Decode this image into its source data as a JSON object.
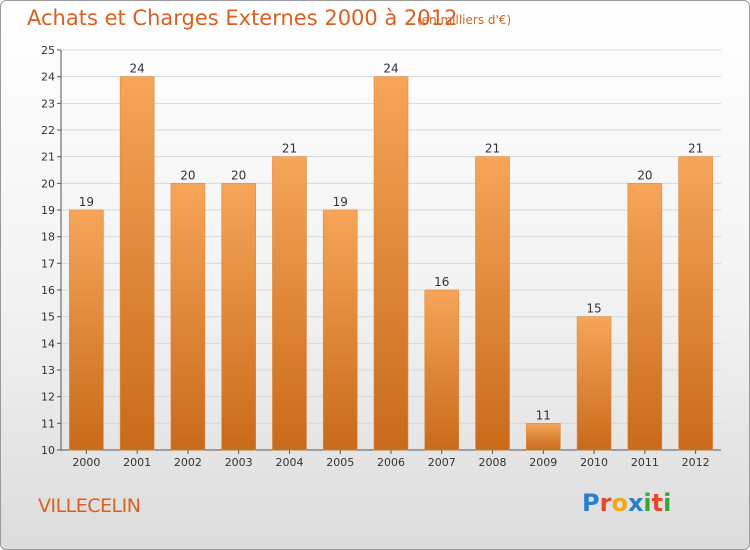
{
  "header": {
    "title": "Achats et Charges Externes 2000 à 2012",
    "unit": "(en milliers d'€)"
  },
  "footer": {
    "commune": "VILLECELIN",
    "logo": [
      "P",
      "r",
      "o",
      "x",
      "i",
      "t",
      "i"
    ],
    "logo_colors": [
      "#2a7fc9",
      "#e8472b",
      "#f2a71b",
      "#2a7fc9",
      "#3aa63a",
      "#e8472b",
      "#3aa63a"
    ]
  },
  "colors": {
    "bar_light": "#f6a559",
    "bar_dark": "#c96a1a",
    "accent": "#d9601f",
    "grid": "#d7d7d7"
  },
  "chart_data": {
    "type": "bar",
    "categories": [
      "2000",
      "2001",
      "2002",
      "2003",
      "2004",
      "2005",
      "2006",
      "2007",
      "2008",
      "2009",
      "2010",
      "2011",
      "2012"
    ],
    "values": [
      19,
      24,
      20,
      20,
      21,
      19,
      24,
      16,
      21,
      11,
      15,
      20,
      21
    ],
    "title": "Achats et Charges Externes 2000 à 2012",
    "ylim": [
      10,
      25
    ],
    "yticks": [
      10,
      11,
      12,
      13,
      14,
      15,
      16,
      17,
      18,
      19,
      20,
      21,
      22,
      23,
      24,
      25
    ],
    "grid": true
  }
}
